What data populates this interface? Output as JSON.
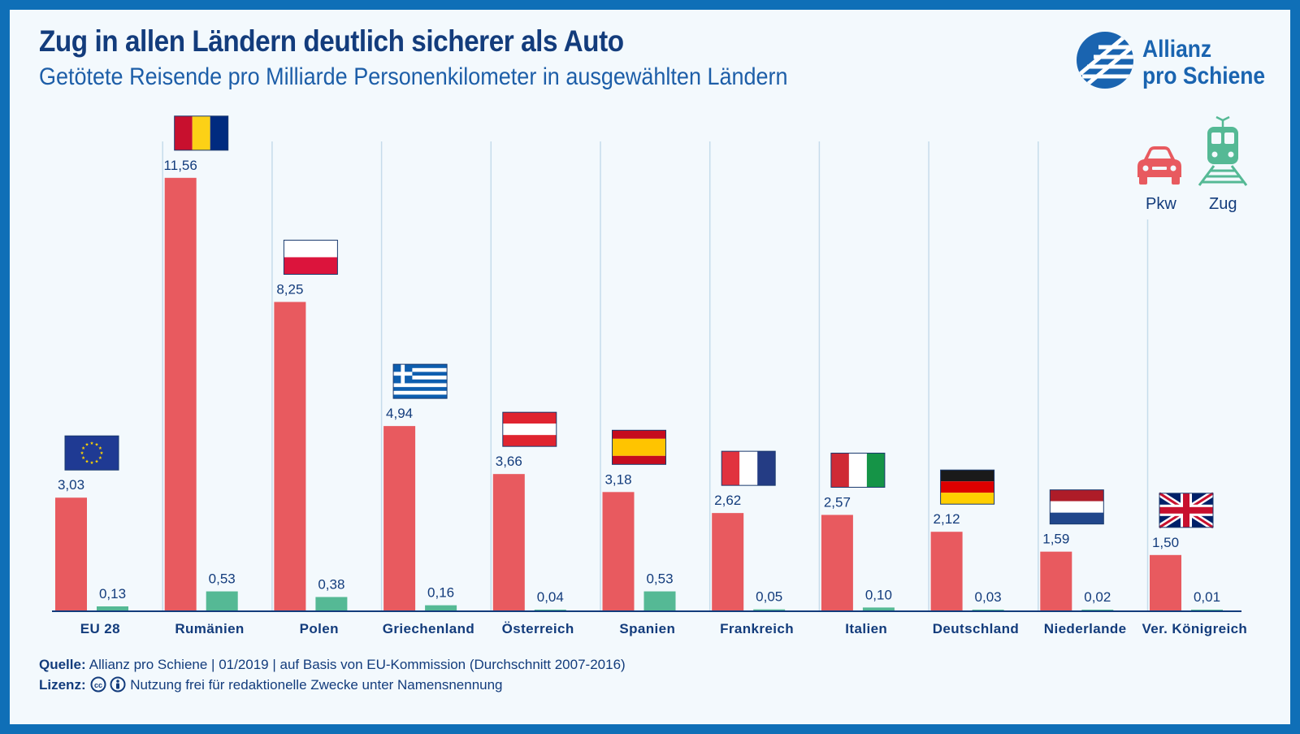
{
  "header": {
    "title": "Zug in allen Ländern deutlich sicherer als Auto",
    "subtitle": "Getötete Reisende pro Milliarde Personenkilometer in ausgewählten Ländern"
  },
  "logo": {
    "line1": "Allianz",
    "line2": "pro Schiene"
  },
  "legend": {
    "car_label": "Pkw",
    "train_label": "Zug"
  },
  "colors": {
    "car": "#e85a5f",
    "train": "#55b995",
    "title": "#133c7c",
    "accent": "#1a64b0",
    "frame": "#0f6fb7"
  },
  "chart_data": {
    "type": "bar",
    "categories": [
      "EU 28",
      "Rumänien",
      "Polen",
      "Griechenland",
      "Österreich",
      "Spanien",
      "Frankreich",
      "Italien",
      "Deutschland",
      "Niederlande",
      "Ver. Königreich"
    ],
    "flags": [
      "eu-flag",
      "romania-flag",
      "poland-flag",
      "greece-flag",
      "austria-flag",
      "spain-flag",
      "france-flag",
      "italy-flag",
      "germany-flag",
      "netherlands-flag",
      "uk-flag"
    ],
    "series": [
      {
        "name": "Pkw",
        "values": [
          3.03,
          11.56,
          8.25,
          4.94,
          3.66,
          3.18,
          2.62,
          2.57,
          2.12,
          1.59,
          1.5
        ],
        "labels": [
          "3,03",
          "11,56",
          "8,25",
          "4,94",
          "3,66",
          "3,18",
          "2,62",
          "2,57",
          "2,12",
          "1,59",
          "1,50"
        ]
      },
      {
        "name": "Zug",
        "values": [
          0.13,
          0.53,
          0.38,
          0.16,
          0.04,
          0.53,
          0.05,
          0.1,
          0.03,
          0.02,
          0.01
        ],
        "labels": [
          "0,13",
          "0,53",
          "0,38",
          "0,16",
          "0,04",
          "0,53",
          "0,05",
          "0,10",
          "0,03",
          "0,02",
          "0,01"
        ]
      }
    ],
    "title": "Zug in allen Ländern deutlich sicherer als Auto",
    "subtitle": "Getötete Reisende pro Milliarde Personenkilometer in ausgewählten Ländern",
    "ylim": [
      0,
      12
    ],
    "grid": false,
    "legend": "top-right"
  },
  "footer": {
    "source_label": "Quelle:",
    "source_text": "Allianz pro Schiene | 01/2019 | auf Basis von EU-Kommission (Durchschnitt 2007-2016)",
    "license_label": "Lizenz:",
    "license_text": "Nutzung frei für redaktionelle Zwecke unter Namensnennung"
  }
}
